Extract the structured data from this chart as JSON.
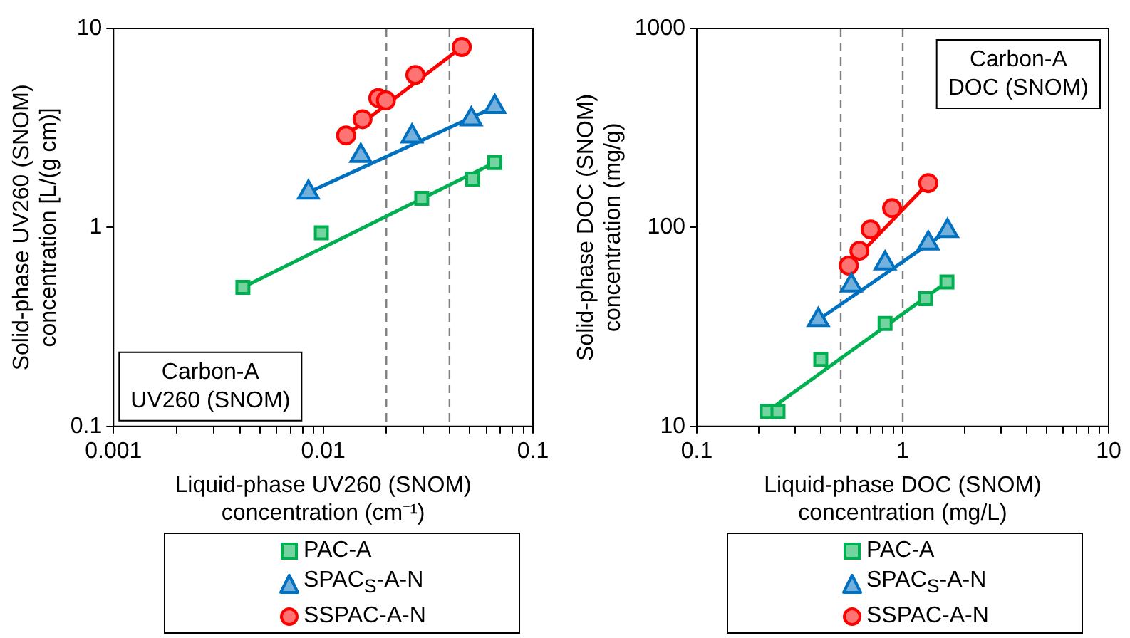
{
  "chart_data": [
    {
      "type": "scatter",
      "xlabel": "Liquid-phase UV260 (SNOM)\nconcentration (cm⁻¹)",
      "ylabel": "Solid-phase UV260 (SNOM)\nconcentration [L/(g cm)]",
      "log": "xy",
      "legend": "bottom",
      "xlim": [
        0.001,
        0.1
      ],
      "ylim": [
        0.1,
        10
      ],
      "xticks": [
        0.001,
        {
          "value": 0.002,
          "label": null
        },
        {
          "value": 0.003,
          "label": null
        },
        {
          "value": 0.004,
          "label": null
        },
        {
          "value": 0.005,
          "label": null
        },
        {
          "value": 0.006,
          "label": null
        },
        {
          "value": 0.007,
          "label": null
        },
        {
          "value": 0.008,
          "label": null
        },
        {
          "value": 0.009,
          "label": null
        },
        0.01,
        {
          "value": 0.02,
          "label": null
        },
        {
          "value": 0.03,
          "label": null
        },
        {
          "value": 0.04,
          "label": null
        },
        {
          "value": 0.05,
          "label": null
        },
        {
          "value": 0.06,
          "label": null
        },
        {
          "value": 0.07,
          "label": null
        },
        {
          "value": 0.08,
          "label": null
        },
        {
          "value": 0.09,
          "label": null
        },
        0.1
      ],
      "yticks": [
        0.1,
        1,
        10
      ],
      "ref_lines": [
        {
          "axis": "x",
          "value": 0.02,
          "color": "#808080",
          "line_style": "dashed"
        },
        {
          "axis": "x",
          "value": 0.04,
          "color": "#808080",
          "line_style": "dashed"
        }
      ],
      "annotations": [
        "Carbon-A\nUV260 (SNOM)"
      ],
      "series": [
        {
          "name": "PAC-A",
          "type": "scatter",
          "marker": "square",
          "color": "#00b050",
          "x": [
            0.00414,
            0.0098,
            0.0295,
            0.0516,
            0.0658
          ],
          "values": [
            0.5,
            0.94,
            1.4,
            1.75,
            2.12
          ]
        },
        {
          "name": "SPAC$_{S}$-A-N",
          "type": "scatter",
          "marker": "triangle",
          "color": "#0070c0",
          "x": [
            0.0085,
            0.0151,
            0.0265,
            0.0508,
            0.0658
          ],
          "values": [
            1.5,
            2.29,
            2.87,
            3.5,
            4.04
          ]
        },
        {
          "name": "SSPAC-A-N",
          "type": "scatter",
          "marker": "circle",
          "color": "#ff0000",
          "x": [
            0.01285,
            0.0154,
            0.0183,
            0.0199,
            0.0275,
            0.0458
          ],
          "values": [
            2.9,
            3.5,
            4.47,
            4.35,
            5.84,
            8.07
          ]
        },
        {
          "type": "line",
          "color": "#00b050",
          "x": [
            0.00414,
            0.0658
          ],
          "values": [
            0.5,
            2.12
          ]
        },
        {
          "type": "line",
          "color": "#0070c0",
          "x": [
            0.0085,
            0.0658
          ],
          "values": [
            1.5,
            4.04
          ]
        },
        {
          "type": "line",
          "color": "#ff0000",
          "x": [
            0.01285,
            0.0458
          ],
          "values": [
            2.9,
            8.07
          ]
        }
      ]
    },
    {
      "type": "scatter",
      "xlabel": "Liquid-phase DOC (SNOM)\nconcentration (mg/L)",
      "ylabel": "Solid-phase DOC (SNOM)\nconcentration (mg/g)",
      "log": "xy",
      "legend": "bottom",
      "xlim": [
        0.1,
        10
      ],
      "ylim": [
        10,
        1000
      ],
      "xticks": [
        0.1,
        {
          "value": 0.2,
          "label": null
        },
        {
          "value": 0.3,
          "label": null
        },
        {
          "value": 0.4,
          "label": null
        },
        {
          "value": 0.5,
          "label": null
        },
        {
          "value": 0.6,
          "label": null
        },
        {
          "value": 0.7,
          "label": null
        },
        {
          "value": 0.8,
          "label": null
        },
        {
          "value": 0.9,
          "label": null
        },
        1,
        {
          "value": 2,
          "label": null
        },
        {
          "value": 3,
          "label": null
        },
        {
          "value": 4,
          "label": null
        },
        {
          "value": 5,
          "label": null
        },
        {
          "value": 6,
          "label": null
        },
        {
          "value": 7,
          "label": null
        },
        {
          "value": 8,
          "label": null
        },
        {
          "value": 9,
          "label": null
        },
        10
      ],
      "yticks": [
        10,
        100,
        1000
      ],
      "ref_lines": [
        {
          "axis": "x",
          "value": 0.5,
          "color": "#808080",
          "line_style": "dashed"
        },
        {
          "axis": "x",
          "value": 1,
          "color": "#808080",
          "line_style": "dashed"
        }
      ],
      "annotations": [
        "Carbon-A\nDOC (SNOM)"
      ],
      "series": [
        {
          "name": "PAC-A",
          "type": "scatter",
          "marker": "square",
          "color": "#00b050",
          "x": [
            0.22,
            0.248,
            0.4,
            0.821,
            1.29,
            1.64
          ],
          "values": [
            11.9,
            11.9,
            21.7,
            32.9,
            43.8,
            53.2
          ]
        },
        {
          "name": "SPAC$_{S}$-A-N",
          "type": "scatter",
          "marker": "triangle",
          "color": "#0070c0",
          "x": [
            0.389,
            0.563,
            0.821,
            1.33,
            1.65
          ],
          "values": [
            34.3,
            51.2,
            66.1,
            83.1,
            96
          ]
        },
        {
          "name": "SSPAC-A-N",
          "type": "scatter",
          "marker": "circle",
          "color": "#ff0000",
          "x": [
            0.547,
            0.616,
            0.698,
            0.888,
            1.33
          ],
          "values": [
            64.3,
            76.3,
            97.7,
            125,
            167
          ]
        },
        {
          "type": "line",
          "color": "#00b050",
          "x": [
            0.22,
            1.64
          ],
          "values": [
            11.9,
            53.2
          ]
        },
        {
          "type": "line",
          "color": "#0070c0",
          "x": [
            0.389,
            1.65
          ],
          "values": [
            34.3,
            96
          ]
        },
        {
          "type": "line",
          "color": "#ff0000",
          "x": [
            0.547,
            1.33
          ],
          "values": [
            64.3,
            167
          ]
        }
      ]
    }
  ]
}
